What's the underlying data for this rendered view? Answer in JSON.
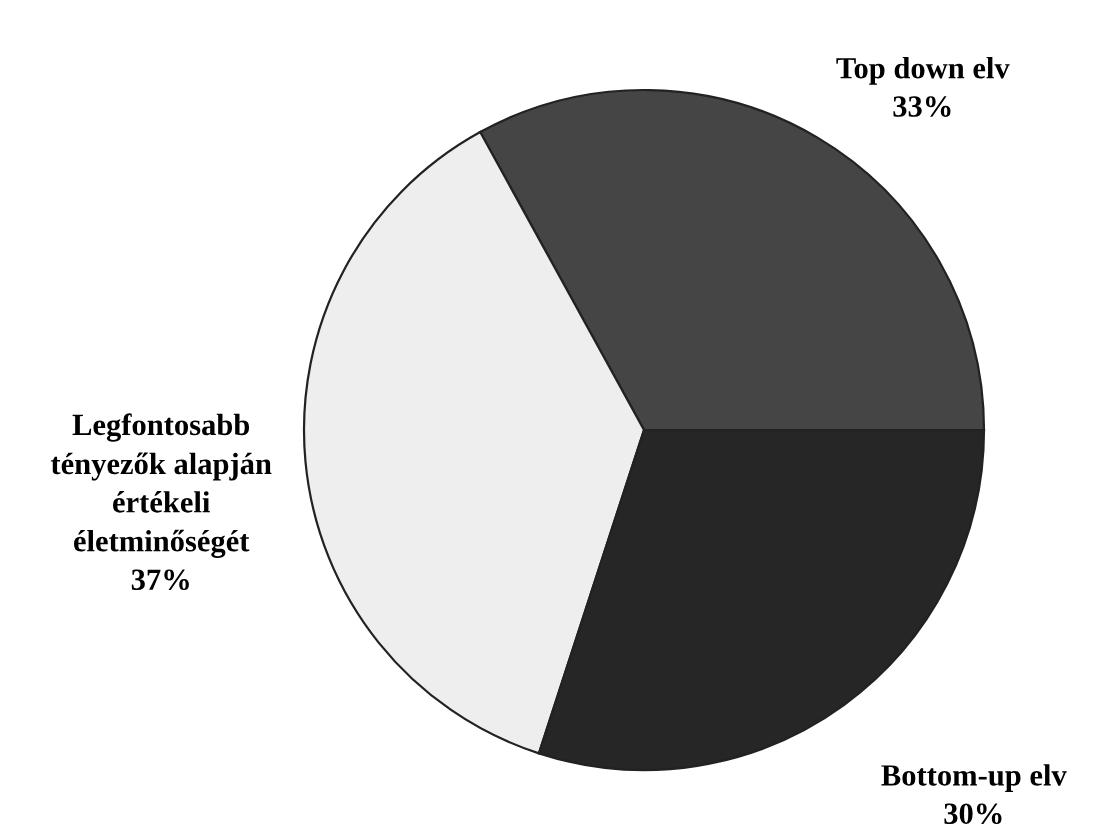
{
  "chart_data": {
    "type": "pie",
    "categories": [
      "Top down elv",
      "Legfontosabb\ntényezők alapján\nértékeli\néletminőségét",
      "Bottom-up elv"
    ],
    "values": [
      33,
      37,
      30
    ],
    "colors": [
      "#454545",
      "#eeeeee",
      "#262626"
    ],
    "value_labels": [
      "33%",
      "37%",
      "30%"
    ],
    "legend": false
  }
}
